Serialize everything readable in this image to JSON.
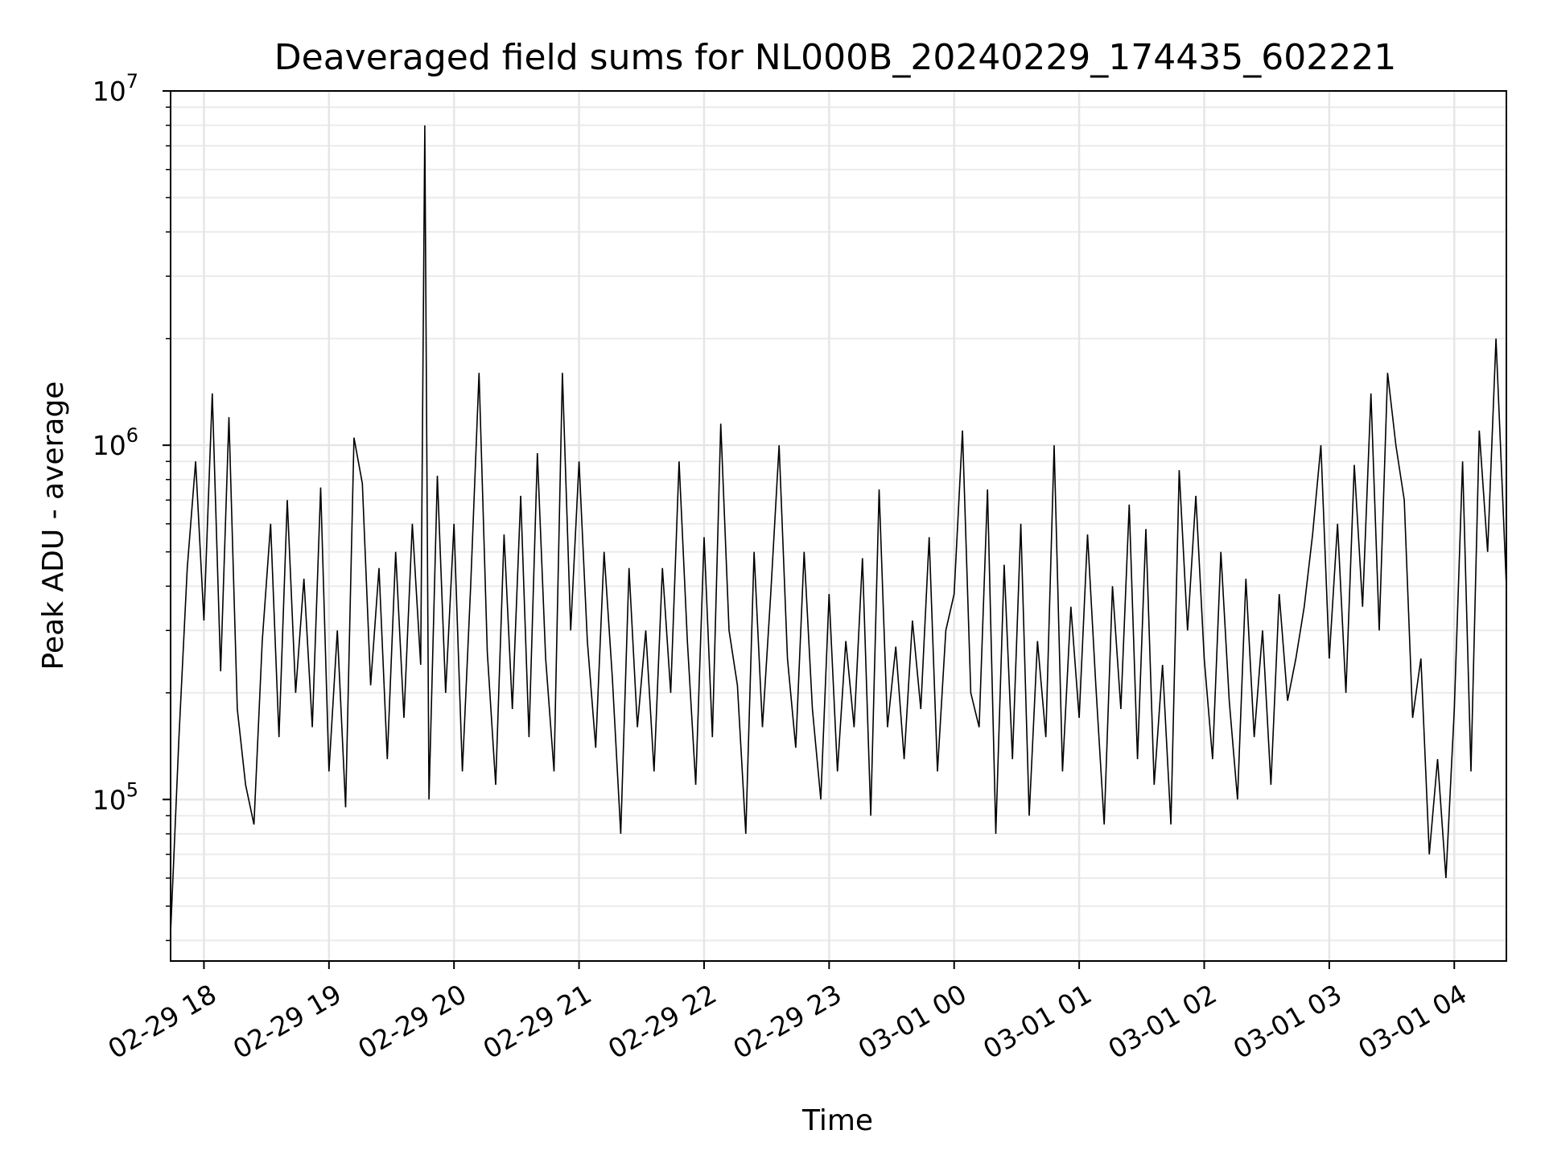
{
  "chart_data": {
    "type": "line",
    "title": "Deaveraged field sums for NL000B_20240229_174435_602221",
    "xlabel": "Time",
    "ylabel": "Peak ADU - average",
    "x_ticks": [
      "02-29 18",
      "02-29 19",
      "02-29 20",
      "02-29 21",
      "02-29 22",
      "02-29 23",
      "03-01 00",
      "03-01 01",
      "03-01 02",
      "03-01 03",
      "03-01 04"
    ],
    "y_tick_labels": [
      {
        "base": "10",
        "exp": "5",
        "value": 100000
      },
      {
        "base": "10",
        "exp": "6",
        "value": 1000000
      },
      {
        "base": "10",
        "exp": "7",
        "value": 10000000
      }
    ],
    "y_scale": "log",
    "ylim": [
      35000,
      10000000
    ],
    "xlim": [
      "2024-02-29 17:44",
      "2024-03-01 04:25"
    ],
    "grid": true,
    "line_color": "#000000",
    "series": [
      {
        "x": [
          "2024-02-29 17:44",
          "2024-02-29 17:48",
          "2024-02-29 17:52",
          "2024-02-29 17:56",
          "2024-02-29 18:00",
          "2024-02-29 18:04",
          "2024-02-29 18:08",
          "2024-02-29 18:12",
          "2024-02-29 18:16",
          "2024-02-29 18:20",
          "2024-02-29 18:24",
          "2024-02-29 18:28",
          "2024-02-29 18:32",
          "2024-02-29 18:36",
          "2024-02-29 18:40",
          "2024-02-29 18:44",
          "2024-02-29 18:48",
          "2024-02-29 18:52",
          "2024-02-29 18:56",
          "2024-02-29 19:00",
          "2024-02-29 19:04",
          "2024-02-29 19:08",
          "2024-02-29 19:12",
          "2024-02-29 19:16",
          "2024-02-29 19:20",
          "2024-02-29 19:24",
          "2024-02-29 19:28",
          "2024-02-29 19:32",
          "2024-02-29 19:36",
          "2024-02-29 19:40",
          "2024-02-29 19:44",
          "2024-02-29 19:46",
          "2024-02-29 19:48",
          "2024-02-29 19:52",
          "2024-02-29 19:56",
          "2024-02-29 20:00",
          "2024-02-29 20:04",
          "2024-02-29 20:08",
          "2024-02-29 20:12",
          "2024-02-29 20:16",
          "2024-02-29 20:20",
          "2024-02-29 20:24",
          "2024-02-29 20:28",
          "2024-02-29 20:32",
          "2024-02-29 20:36",
          "2024-02-29 20:40",
          "2024-02-29 20:44",
          "2024-02-29 20:48",
          "2024-02-29 20:52",
          "2024-02-29 20:56",
          "2024-02-29 21:00",
          "2024-02-29 21:04",
          "2024-02-29 21:08",
          "2024-02-29 21:12",
          "2024-02-29 21:16",
          "2024-02-29 21:20",
          "2024-02-29 21:24",
          "2024-02-29 21:28",
          "2024-02-29 21:32",
          "2024-02-29 21:36",
          "2024-02-29 21:40",
          "2024-02-29 21:44",
          "2024-02-29 21:48",
          "2024-02-29 21:52",
          "2024-02-29 21:56",
          "2024-02-29 22:00",
          "2024-02-29 22:04",
          "2024-02-29 22:08",
          "2024-02-29 22:12",
          "2024-02-29 22:16",
          "2024-02-29 22:20",
          "2024-02-29 22:24",
          "2024-02-29 22:28",
          "2024-02-29 22:32",
          "2024-02-29 22:36",
          "2024-02-29 22:40",
          "2024-02-29 22:44",
          "2024-02-29 22:48",
          "2024-02-29 22:52",
          "2024-02-29 22:56",
          "2024-02-29 23:00",
          "2024-02-29 23:04",
          "2024-02-29 23:08",
          "2024-02-29 23:12",
          "2024-02-29 23:16",
          "2024-02-29 23:20",
          "2024-02-29 23:24",
          "2024-02-29 23:28",
          "2024-02-29 23:32",
          "2024-02-29 23:36",
          "2024-02-29 23:40",
          "2024-02-29 23:44",
          "2024-02-29 23:48",
          "2024-02-29 23:52",
          "2024-02-29 23:56",
          "2024-03-01 00:00",
          "2024-03-01 00:04",
          "2024-03-01 00:08",
          "2024-03-01 00:12",
          "2024-03-01 00:16",
          "2024-03-01 00:20",
          "2024-03-01 00:24",
          "2024-03-01 00:28",
          "2024-03-01 00:32",
          "2024-03-01 00:36",
          "2024-03-01 00:40",
          "2024-03-01 00:44",
          "2024-03-01 00:48",
          "2024-03-01 00:52",
          "2024-03-01 00:56",
          "2024-03-01 01:00",
          "2024-03-01 01:04",
          "2024-03-01 01:08",
          "2024-03-01 01:12",
          "2024-03-01 01:16",
          "2024-03-01 01:20",
          "2024-03-01 01:24",
          "2024-03-01 01:28",
          "2024-03-01 01:32",
          "2024-03-01 01:36",
          "2024-03-01 01:40",
          "2024-03-01 01:44",
          "2024-03-01 01:48",
          "2024-03-01 01:52",
          "2024-03-01 01:56",
          "2024-03-01 02:00",
          "2024-03-01 02:04",
          "2024-03-01 02:08",
          "2024-03-01 02:12",
          "2024-03-01 02:16",
          "2024-03-01 02:20",
          "2024-03-01 02:24",
          "2024-03-01 02:28",
          "2024-03-01 02:32",
          "2024-03-01 02:36",
          "2024-03-01 02:40",
          "2024-03-01 02:44",
          "2024-03-01 02:48",
          "2024-03-01 02:52",
          "2024-03-01 02:56",
          "2024-03-01 03:00",
          "2024-03-01 03:04",
          "2024-03-01 03:08",
          "2024-03-01 03:12",
          "2024-03-01 03:16",
          "2024-03-01 03:20",
          "2024-03-01 03:24",
          "2024-03-01 03:28",
          "2024-03-01 03:32",
          "2024-03-01 03:36",
          "2024-03-01 03:40",
          "2024-03-01 03:44",
          "2024-03-01 03:48",
          "2024-03-01 03:52",
          "2024-03-01 03:56",
          "2024-03-01 04:00",
          "2024-03-01 04:04",
          "2024-03-01 04:08",
          "2024-03-01 04:12",
          "2024-03-01 04:16",
          "2024-03-01 04:20",
          "2024-03-01 04:25"
        ],
        "y": [
          42000,
          150000,
          450000,
          900000,
          320000,
          1400000,
          230000,
          1200000,
          180000,
          110000,
          85000,
          280000,
          600000,
          150000,
          700000,
          200000,
          420000,
          160000,
          760000,
          120000,
          300000,
          95000,
          1050000,
          780000,
          210000,
          450000,
          130000,
          500000,
          170000,
          600000,
          240000,
          8000000,
          100000,
          820000,
          200000,
          600000,
          120000,
          400000,
          1600000,
          260000,
          110000,
          560000,
          180000,
          720000,
          150000,
          950000,
          250000,
          120000,
          1600000,
          300000,
          900000,
          280000,
          140000,
          500000,
          220000,
          80000,
          450000,
          160000,
          300000,
          120000,
          450000,
          200000,
          900000,
          280000,
          110000,
          550000,
          150000,
          1150000,
          300000,
          210000,
          80000,
          500000,
          160000,
          380000,
          1000000,
          250000,
          140000,
          500000,
          180000,
          100000,
          380000,
          120000,
          280000,
          160000,
          480000,
          90000,
          750000,
          160000,
          270000,
          130000,
          320000,
          180000,
          550000,
          120000,
          300000,
          380000,
          1100000,
          200000,
          160000,
          750000,
          80000,
          460000,
          130000,
          600000,
          90000,
          280000,
          150000,
          1000000,
          120000,
          350000,
          170000,
          560000,
          210000,
          85000,
          400000,
          180000,
          680000,
          130000,
          580000,
          110000,
          240000,
          85000,
          850000,
          300000,
          720000,
          250000,
          130000,
          500000,
          190000,
          100000,
          420000,
          150000,
          300000,
          110000,
          380000,
          190000,
          250000,
          350000,
          560000,
          1000000,
          250000,
          600000,
          200000,
          880000,
          350000,
          1400000,
          300000,
          1600000,
          1000000,
          700000,
          170000,
          250000,
          70000,
          130000,
          60000,
          180000,
          900000,
          120000,
          1100000,
          500000,
          2000000,
          400000
        ]
      }
    ]
  }
}
